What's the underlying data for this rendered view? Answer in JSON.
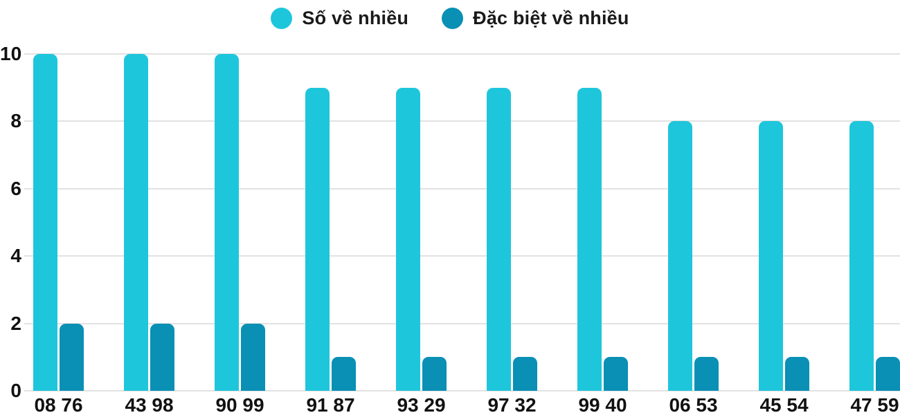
{
  "legend": {
    "items": [
      {
        "label": "Số về nhiều",
        "color": "#1ec6dc"
      },
      {
        "label": "Đặc biệt về nhiều",
        "color": "#0990b4"
      }
    ]
  },
  "chart_data": {
    "type": "bar",
    "title": "",
    "xlabel": "",
    "ylabel": "",
    "categories": [
      "08 76",
      "43 98",
      "90 99",
      "91 87",
      "93 29",
      "97 32",
      "99 40",
      "06 53",
      "45 54",
      "47 59"
    ],
    "series": [
      {
        "name": "Số về nhiều",
        "color": "#1ec6dc",
        "values": [
          10,
          10,
          10,
          9,
          9,
          9,
          9,
          8,
          8,
          8
        ]
      },
      {
        "name": "Đặc biệt về nhiều",
        "color": "#0990b4",
        "values": [
          2,
          2,
          2,
          1,
          1,
          1,
          1,
          1,
          1,
          1
        ]
      }
    ],
    "ylim": [
      0,
      10
    ],
    "yticks": [
      0,
      2,
      4,
      6,
      8,
      10
    ],
    "grid": "horizontal",
    "legend_position": "top-center"
  },
  "colors": {
    "background": "#ffffff",
    "text": "#1a1a1a",
    "gridline": "#e2e2e2"
  }
}
